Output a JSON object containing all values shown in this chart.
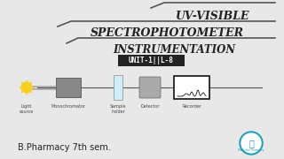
{
  "bg_color": "#e8e8e8",
  "title_line1": "UV-VISIBLE",
  "title_line2": "SPECTROPHOTOMETER",
  "title_line3": "INSTRUMENTATION",
  "unit_label": "UNIT-1||L-8",
  "components": [
    "Light\nsource",
    "Monochromator",
    "Sample\nholder",
    "Detector",
    "Recorder"
  ],
  "bottom_text": "B.Pharmacy 7th sem.",
  "bracket_color": "#555555",
  "text_color": "#222222",
  "unit_bg": "#222222",
  "unit_fg": "#ffffff",
  "box_gray": "#888888",
  "box_light_gray": "#aaaaaa",
  "recorder_bg": "#111111",
  "line_color": "#555555"
}
